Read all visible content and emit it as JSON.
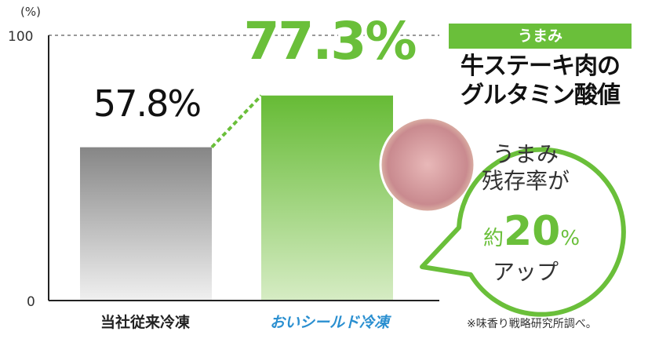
{
  "chart_data": {
    "type": "bar",
    "categories": [
      "当社従来冷凍",
      "おいシールド冷凍"
    ],
    "values": [
      57.8,
      77.3
    ],
    "data_labels": [
      "57.8%",
      "77.3%"
    ],
    "ylabel": "(%)",
    "ylim": [
      0,
      100
    ],
    "yticks": [
      "0",
      "100"
    ],
    "colors": {
      "bar1": "#8a8a8a",
      "bar2": "#6abf3a"
    }
  },
  "badge": "うまみ",
  "title_lines": [
    "牛ステーキ肉の",
    "グルタミン酸値"
  ],
  "bubble": {
    "line1": "うまみ",
    "line2": "残存率が",
    "prefix": "約",
    "number": "20",
    "unit": "%",
    "line4": "アップ"
  },
  "image": "steak-meat-photo",
  "note": "※味香り戦略研究所調べ。"
}
